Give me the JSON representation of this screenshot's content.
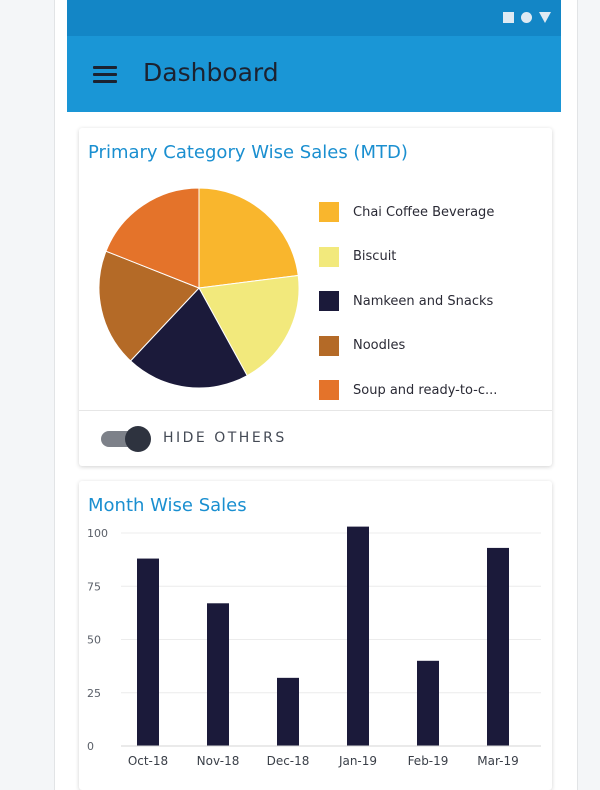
{
  "app": {
    "title": "Dashboard"
  },
  "status_bar": {
    "icons": [
      "square-icon",
      "circle-icon",
      "triangle-icon"
    ]
  },
  "colors": {
    "status_bar": "#1386c6",
    "app_bar": "#1a96d6",
    "card_title": "#1a8fd0",
    "bar": "#1b1a3a"
  },
  "category_card": {
    "title": "Primary Category Wise Sales (MTD)",
    "toggle": {
      "label": "HIDE OTHERS",
      "on": true
    }
  },
  "month_card": {
    "title": "Month Wise Sales"
  },
  "chart_data": [
    {
      "type": "pie",
      "title": "Primary Category Wise Sales (MTD)",
      "legend": "right",
      "slices": [
        {
          "label": "Chai Coffee Beverage",
          "value": 23,
          "color": "#f9b62d"
        },
        {
          "label": "Biscuit",
          "value": 19,
          "color": "#f2e97c"
        },
        {
          "label": "Namkeen and Snacks",
          "value": 20,
          "color": "#1b1a3a"
        },
        {
          "label": "Noodles",
          "value": 19,
          "color": "#b46a27"
        },
        {
          "label": "Soup and ready-to-c...",
          "value": 19,
          "color": "#e4732a"
        }
      ]
    },
    {
      "type": "bar",
      "title": "Month Wise Sales",
      "categories": [
        "Oct-18",
        "Nov-18",
        "Dec-18",
        "Jan-19",
        "Feb-19",
        "Mar-19"
      ],
      "values": [
        88,
        67,
        32,
        103,
        40,
        93
      ],
      "ylim": [
        0,
        100
      ],
      "yticks": [
        "0",
        "25",
        "50",
        "75",
        "100"
      ],
      "grid": true
    }
  ]
}
